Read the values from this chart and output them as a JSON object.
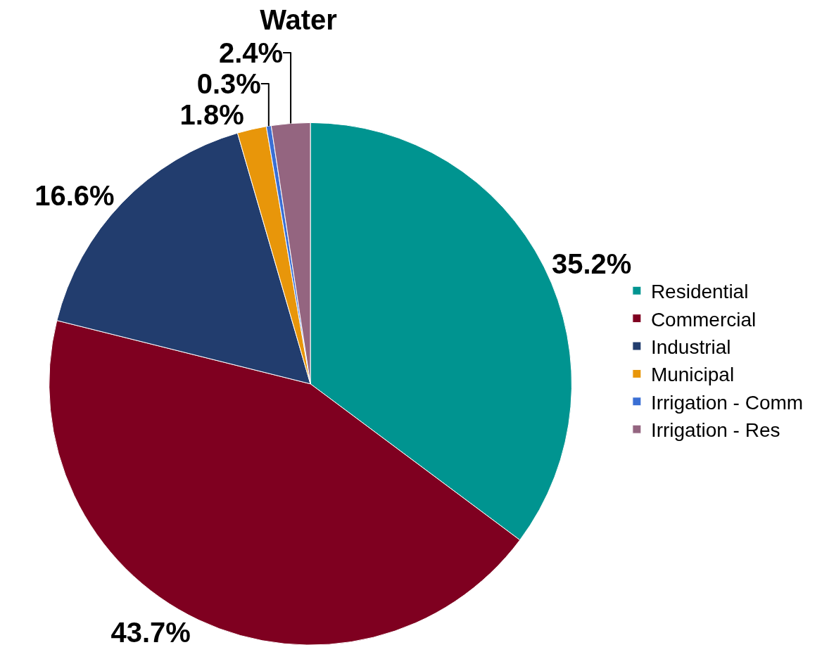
{
  "chart_data": {
    "type": "pie",
    "title": "Water",
    "categories": [
      "Residential",
      "Commercial",
      "Industrial",
      "Municipal",
      "Irrigation - Comm",
      "Irrigation - Res"
    ],
    "values": [
      35.2,
      43.7,
      16.6,
      1.8,
      0.3,
      2.4
    ],
    "colors": [
      "#009490",
      "#7f0020",
      "#223d6e",
      "#e8960a",
      "#3a6fd4",
      "#946580"
    ],
    "value_labels": [
      "35.2%",
      "43.7%",
      "16.6%",
      "1.8%",
      "0.3%",
      "2.4%"
    ],
    "legend": "right"
  }
}
